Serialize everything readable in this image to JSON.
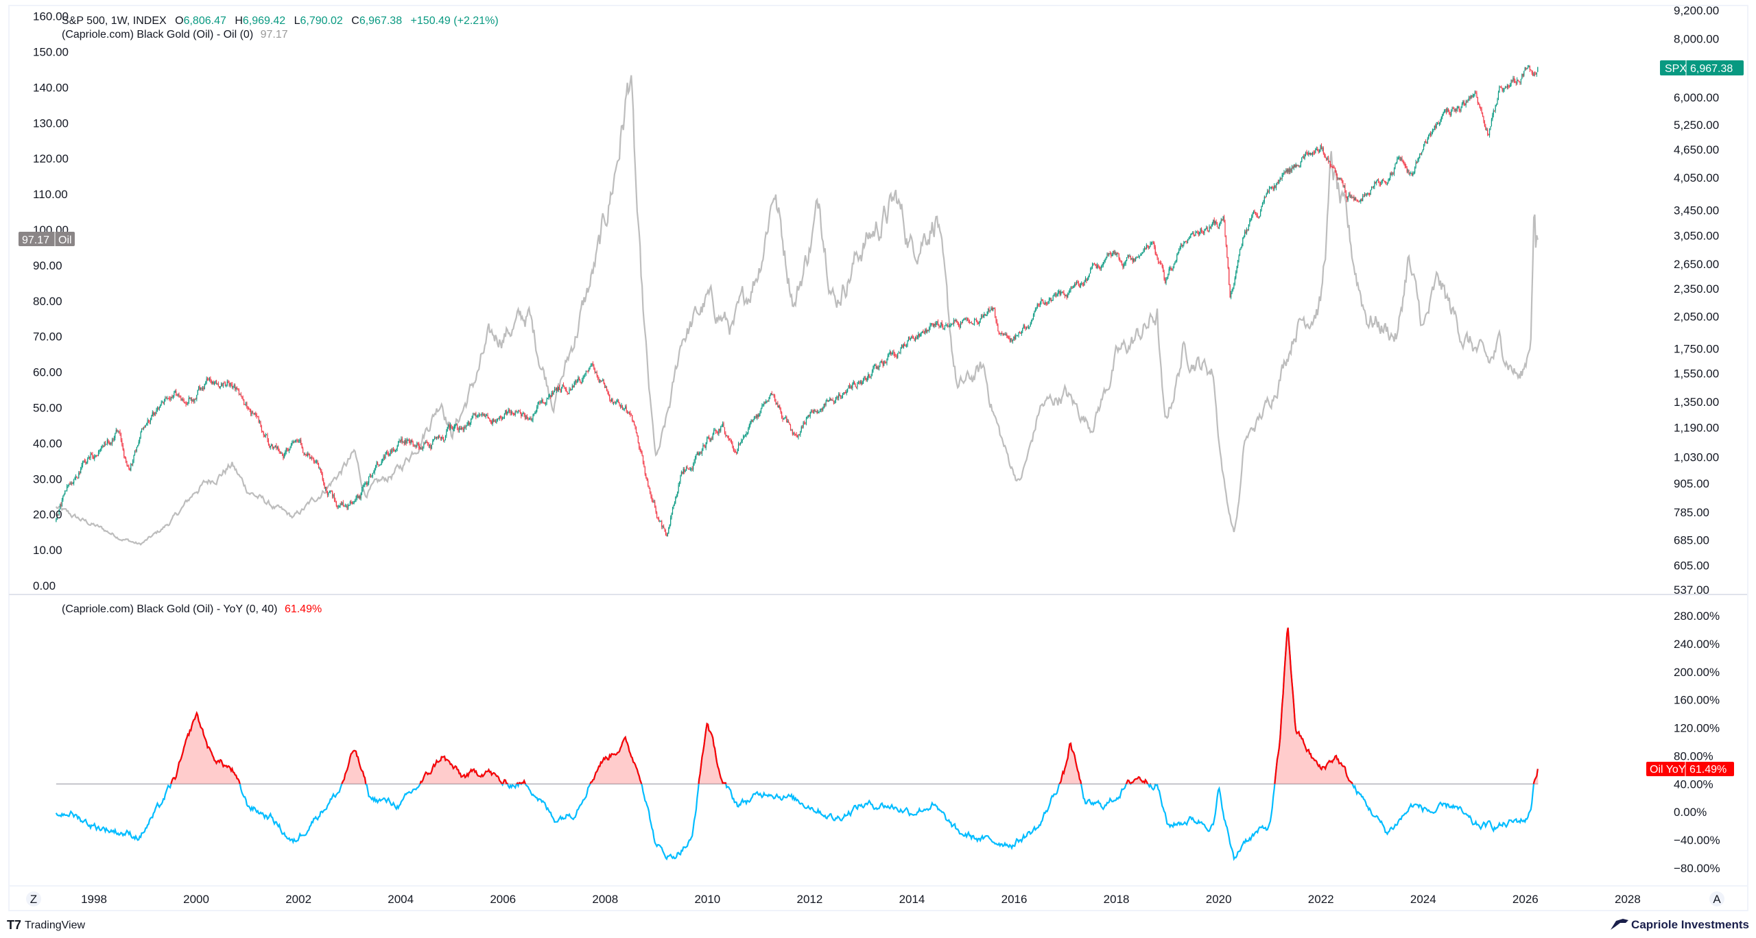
{
  "header": {
    "symbol": "S&P 500, 1W, INDEX",
    "o_label": "O",
    "o_value": "6,806.47",
    "h_label": "H",
    "h_value": "6,969.42",
    "l_label": "L",
    "l_value": "6,790.02",
    "c_label": "C",
    "c_value": "6,967.38",
    "change": "+150.49 (+2.21%)",
    "indicator1": "(Capriole.com) Black Gold (Oil) - Oil (0)",
    "indicator1_value": "97.17",
    "indicator2": "(Capriole.com) Black Gold (Oil) - YoY (0, 40)",
    "indicator2_value": "61.49%"
  },
  "badges": {
    "spx_label": "SPX",
    "spx_value": "6,967.38",
    "oil_value": "97.17",
    "oil_label": "Oil",
    "yoy_label": "Oil YoY",
    "yoy_value": "61.49%"
  },
  "colors": {
    "up": "#089981",
    "down": "#f23645",
    "oil": "#bdbdbd",
    "yoy_low": "#00bcff",
    "yoy_high": "#ff0000",
    "brand": "#1a1f4b"
  },
  "footer": {
    "tradingview": "TradingView",
    "brand": "Capriole Investments",
    "zoom_left": "Z",
    "auto": "A"
  },
  "chart_data": [
    {
      "type": "candlestick",
      "title": "S&P 500, 1W, INDEX",
      "yscale": "log",
      "ylim": [
        537,
        9200
      ],
      "yticks": [
        "9,200.00",
        "8,000.00",
        "6,000.00",
        "5,250.00",
        "4,650.00",
        "4,050.00",
        "3,450.00",
        "3,050.00",
        "2,650.00",
        "2,350.00",
        "2,050.00",
        "1,750.00",
        "1,550.00",
        "1,350.00",
        "1,190.00",
        "1,030.00",
        "905.00",
        "785.00",
        "685.00",
        "605.00",
        "537.00"
      ],
      "ytick_values": [
        9200,
        8000,
        6000,
        5250,
        4650,
        4050,
        3450,
        3050,
        2650,
        2350,
        2050,
        1750,
        1550,
        1350,
        1190,
        1030,
        905,
        785,
        685,
        605,
        537
      ],
      "points": [
        [
          1997.26,
          760
        ],
        [
          1997.6,
          950
        ],
        [
          1998.5,
          1180
        ],
        [
          1998.7,
          960
        ],
        [
          1999.0,
          1230
        ],
        [
          1999.5,
          1370
        ],
        [
          2000.0,
          1400
        ],
        [
          2000.2,
          1500
        ],
        [
          2000.7,
          1480
        ],
        [
          2001.0,
          1320
        ],
        [
          2001.3,
          1150
        ],
        [
          2001.7,
          1000
        ],
        [
          2002.0,
          1150
        ],
        [
          2002.5,
          900
        ],
        [
          2002.8,
          800
        ],
        [
          2003.2,
          820
        ],
        [
          2003.5,
          1000
        ],
        [
          2004.0,
          1130
        ],
        [
          2004.6,
          1080
        ],
        [
          2005.0,
          1200
        ],
        [
          2006.0,
          1280
        ],
        [
          2006.5,
          1250
        ],
        [
          2007.0,
          1430
        ],
        [
          2007.8,
          1550
        ],
        [
          2008.2,
          1330
        ],
        [
          2008.5,
          1280
        ],
        [
          2008.8,
          900
        ],
        [
          2009.2,
          690
        ],
        [
          2009.5,
          930
        ],
        [
          2010.0,
          1120
        ],
        [
          2010.3,
          1200
        ],
        [
          2010.5,
          1050
        ],
        [
          2011.0,
          1280
        ],
        [
          2011.3,
          1360
        ],
        [
          2011.7,
          1120
        ],
        [
          2012.0,
          1300
        ],
        [
          2012.5,
          1380
        ],
        [
          2013.0,
          1480
        ],
        [
          2014.0,
          1840
        ],
        [
          2015.0,
          2050
        ],
        [
          2015.6,
          2100
        ],
        [
          2015.7,
          1900
        ],
        [
          2016.1,
          1870
        ],
        [
          2016.5,
          2150
        ],
        [
          2017.0,
          2280
        ],
        [
          2018.0,
          2800
        ],
        [
          2018.1,
          2600
        ],
        [
          2018.7,
          2920
        ],
        [
          2018.95,
          2400
        ],
        [
          2019.3,
          2900
        ],
        [
          2020.1,
          3300
        ],
        [
          2020.22,
          2250
        ],
        [
          2020.5,
          3100
        ],
        [
          2021.0,
          3800
        ],
        [
          2021.5,
          4300
        ],
        [
          2022.0,
          4750
        ],
        [
          2022.5,
          3700
        ],
        [
          2022.8,
          3600
        ],
        [
          2023.0,
          3900
        ],
        [
          2023.5,
          4400
        ],
        [
          2023.8,
          4150
        ],
        [
          2024.0,
          4800
        ],
        [
          2024.5,
          5500
        ],
        [
          2025.0,
          6000
        ],
        [
          2025.27,
          5000
        ],
        [
          2025.5,
          6200
        ],
        [
          2026.0,
          6900
        ],
        [
          2026.15,
          6700
        ],
        [
          2026.22,
          6500
        ],
        [
          2026.25,
          6967.38
        ]
      ]
    },
    {
      "type": "line",
      "title": "(Capriole.com) Black Gold (Oil) - Oil (0)",
      "ylim": [
        0,
        160
      ],
      "yticks": [
        "160.00",
        "150.00",
        "140.00",
        "130.00",
        "120.00",
        "110.00",
        "100.00",
        "90.00",
        "80.00",
        "70.00",
        "60.00",
        "50.00",
        "40.00",
        "30.00",
        "20.00",
        "10.00",
        "0.00"
      ],
      "points": [
        [
          1997.26,
          22
        ],
        [
          1997.5,
          20
        ],
        [
          1998.0,
          17
        ],
        [
          1998.9,
          11.5
        ],
        [
          1999.5,
          18
        ],
        [
          2000.0,
          27
        ],
        [
          2000.7,
          34
        ],
        [
          2001.0,
          27
        ],
        [
          2001.9,
          19
        ],
        [
          2002.5,
          27
        ],
        [
          2003.1,
          37
        ],
        [
          2003.3,
          26
        ],
        [
          2004.0,
          33
        ],
        [
          2004.8,
          53
        ],
        [
          2005.0,
          43
        ],
        [
          2005.7,
          68
        ],
        [
          2006.5,
          76
        ],
        [
          2007.0,
          52
        ],
        [
          2007.5,
          75
        ],
        [
          2007.9,
          95
        ],
        [
          2008.5,
          145
        ],
        [
          2008.8,
          65
        ],
        [
          2009.0,
          35
        ],
        [
          2009.5,
          70
        ],
        [
          2010.0,
          80
        ],
        [
          2010.5,
          72
        ],
        [
          2011.0,
          90
        ],
        [
          2011.3,
          113
        ],
        [
          2011.7,
          80
        ],
        [
          2012.2,
          108
        ],
        [
          2012.5,
          80
        ],
        [
          2013.0,
          95
        ],
        [
          2013.7,
          108
        ],
        [
          2014.0,
          95
        ],
        [
          2014.5,
          105
        ],
        [
          2014.9,
          55
        ],
        [
          2015.4,
          61
        ],
        [
          2015.9,
          35
        ],
        [
          2016.1,
          29
        ],
        [
          2016.5,
          50
        ],
        [
          2017.0,
          54
        ],
        [
          2017.5,
          45
        ],
        [
          2018.0,
          64
        ],
        [
          2018.8,
          76
        ],
        [
          2018.95,
          45
        ],
        [
          2019.3,
          66
        ],
        [
          2019.9,
          60
        ],
        [
          2020.3,
          15
        ],
        [
          2020.5,
          40
        ],
        [
          2021.0,
          52
        ],
        [
          2021.5,
          73
        ],
        [
          2022.0,
          80
        ],
        [
          2022.2,
          118
        ],
        [
          2022.5,
          100
        ],
        [
          2022.9,
          76
        ],
        [
          2023.5,
          70
        ],
        [
          2023.7,
          92
        ],
        [
          2024.0,
          72
        ],
        [
          2024.3,
          85
        ],
        [
          2024.8,
          70
        ],
        [
          2025.3,
          62
        ],
        [
          2025.5,
          68
        ],
        [
          2025.9,
          58
        ],
        [
          2026.0,
          62
        ],
        [
          2026.1,
          70
        ],
        [
          2026.17,
          110
        ],
        [
          2026.2,
          95
        ],
        [
          2026.25,
          97.17
        ]
      ]
    },
    {
      "type": "area",
      "title": "(Capriole.com) Black Gold (Oil) - YoY (0, 40)",
      "threshold": 40,
      "ylim": [
        -80,
        280
      ],
      "yticks": [
        "280.00%",
        "240.00%",
        "200.00%",
        "160.00%",
        "120.00%",
        "80.00%",
        "40.00%",
        "0.00%",
        "−40.00%",
        "−80.00%"
      ],
      "points": [
        [
          1997.26,
          -5
        ],
        [
          1997.5,
          0
        ],
        [
          1998.0,
          -20
        ],
        [
          1998.9,
          -35
        ],
        [
          1999.3,
          10
        ],
        [
          1999.6,
          50
        ],
        [
          2000.0,
          140
        ],
        [
          2000.3,
          80
        ],
        [
          2000.7,
          60
        ],
        [
          2001.0,
          10
        ],
        [
          2001.5,
          -10
        ],
        [
          2001.9,
          -45
        ],
        [
          2002.3,
          -10
        ],
        [
          2002.8,
          30
        ],
        [
          2003.1,
          90
        ],
        [
          2003.4,
          20
        ],
        [
          2004.0,
          10
        ],
        [
          2004.5,
          50
        ],
        [
          2004.8,
          80
        ],
        [
          2005.2,
          50
        ],
        [
          2005.7,
          60
        ],
        [
          2006.0,
          40
        ],
        [
          2006.5,
          40
        ],
        [
          2007.0,
          -10
        ],
        [
          2007.4,
          0
        ],
        [
          2007.9,
          70
        ],
        [
          2008.4,
          100
        ],
        [
          2008.7,
          50
        ],
        [
          2009.0,
          -50
        ],
        [
          2009.3,
          -65
        ],
        [
          2009.7,
          -40
        ],
        [
          2009.9,
          80
        ],
        [
          2010.0,
          130
        ],
        [
          2010.3,
          40
        ],
        [
          2010.6,
          10
        ],
        [
          2011.2,
          30
        ],
        [
          2011.6,
          20
        ],
        [
          2012.0,
          10
        ],
        [
          2012.5,
          -10
        ],
        [
          2013.0,
          10
        ],
        [
          2013.5,
          10
        ],
        [
          2014.0,
          0
        ],
        [
          2014.4,
          10
        ],
        [
          2014.9,
          -30
        ],
        [
          2015.4,
          -40
        ],
        [
          2016.0,
          -45
        ],
        [
          2016.5,
          -20
        ],
        [
          2017.0,
          60
        ],
        [
          2017.1,
          100
        ],
        [
          2017.4,
          10
        ],
        [
          2017.8,
          10
        ],
        [
          2018.4,
          50
        ],
        [
          2018.8,
          40
        ],
        [
          2019.0,
          -20
        ],
        [
          2019.5,
          -10
        ],
        [
          2019.9,
          -20
        ],
        [
          2020.0,
          30
        ],
        [
          2020.3,
          -70
        ],
        [
          2020.5,
          -40
        ],
        [
          2021.0,
          -20
        ],
        [
          2021.2,
          100
        ],
        [
          2021.35,
          270
        ],
        [
          2021.5,
          120
        ],
        [
          2021.8,
          80
        ],
        [
          2022.0,
          60
        ],
        [
          2022.3,
          80
        ],
        [
          2022.6,
          40
        ],
        [
          2022.9,
          10
        ],
        [
          2023.3,
          -30
        ],
        [
          2023.8,
          10
        ],
        [
          2024.2,
          0
        ],
        [
          2024.6,
          10
        ],
        [
          2025.0,
          -20
        ],
        [
          2025.5,
          -20
        ],
        [
          2026.0,
          -10
        ],
        [
          2026.1,
          0
        ],
        [
          2026.17,
          45
        ],
        [
          2026.25,
          61.49
        ]
      ]
    }
  ],
  "xaxis": {
    "ticks": [
      "1998",
      "2000",
      "2002",
      "2004",
      "2006",
      "2008",
      "2010",
      "2012",
      "2014",
      "2016",
      "2018",
      "2020",
      "2022",
      "2024",
      "2026",
      "2028"
    ]
  }
}
